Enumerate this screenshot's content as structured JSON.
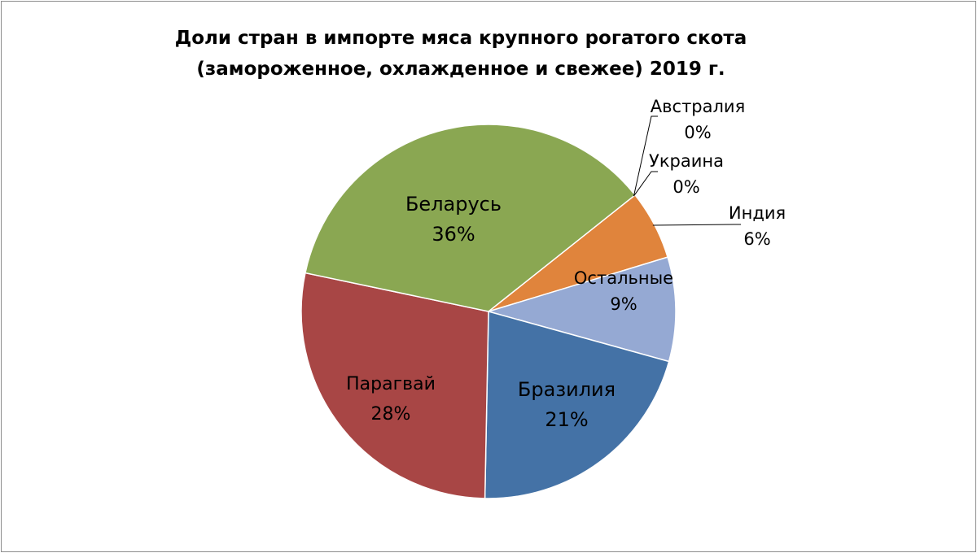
{
  "chart_data": {
    "type": "pie",
    "title": "Доли стран в импорте мяса крупного рогатого скота (замороженное, охлажденное и свежее) 2019 г.",
    "title_lines": [
      "Доли стран в импорте мяса крупного рогатого скота",
      "(замороженное, охлажденное и свежее) 2019 г."
    ],
    "slices": [
      {
        "name": "Индия",
        "value": 6,
        "label": "6%",
        "color": "#E0843C"
      },
      {
        "name": "Остальные",
        "value": 9,
        "label": "9%",
        "color": "#95A9D3"
      },
      {
        "name": "Бразилия",
        "value": 21,
        "label": "21%",
        "color": "#4472A6"
      },
      {
        "name": "Парагвай",
        "value": 28,
        "label": "28%",
        "color": "#A84645"
      },
      {
        "name": "Беларусь",
        "value": 36,
        "label": "36%",
        "color": "#8AA752"
      },
      {
        "name": "Австралия",
        "value": 0,
        "label": "0%",
        "color": "#7A5FA0"
      },
      {
        "name": "Украина",
        "value": 0,
        "label": "0%",
        "color": "#46A3B9"
      }
    ],
    "legend": "none",
    "start_angle_deg": 38.5
  }
}
